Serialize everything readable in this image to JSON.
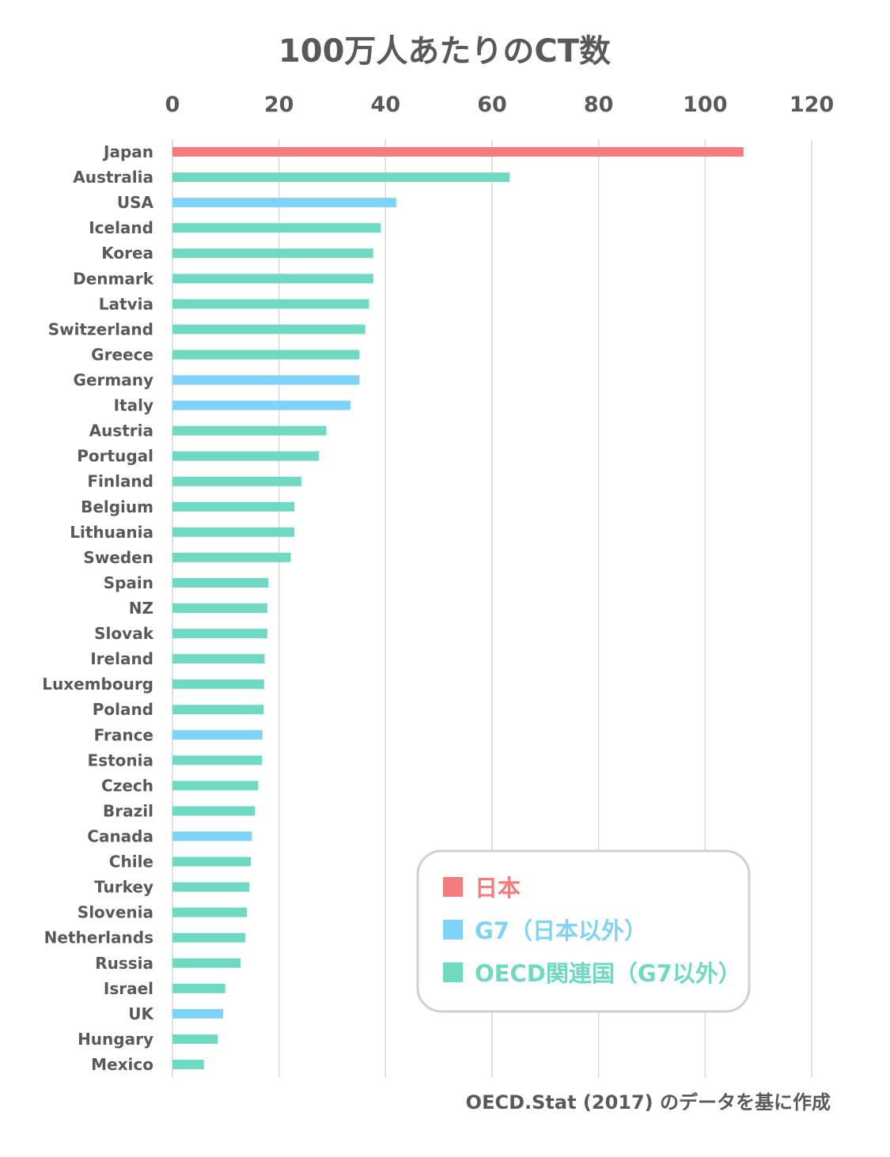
{
  "colors": {
    "japan": "#f47c7c",
    "g7": "#7fd3f7",
    "oecd": "#6fd9c2",
    "text": "#595959",
    "grid": "#d9d9d9"
  },
  "chart_data": {
    "type": "bar",
    "orientation": "horizontal",
    "title": "100万人あたりのCT数",
    "xlim": [
      0,
      120
    ],
    "xticks": [
      "0",
      "20",
      "40",
      "60",
      "80",
      "100",
      "120"
    ],
    "grid": true,
    "legend_position": "bottom-right",
    "legend": [
      {
        "group": "japan",
        "label": "日本"
      },
      {
        "group": "g7",
        "label": "G7（日本以外）"
      },
      {
        "group": "oecd",
        "label": "OECD関連国（G7以外）"
      }
    ],
    "categories": [
      "Japan",
      "Australia",
      "USA",
      "Iceland",
      "Korea",
      "Denmark",
      "Latvia",
      "Switzerland",
      "Greece",
      "Germany",
      "Italy",
      "Austria",
      "Portugal",
      "Finland",
      "Belgium",
      "Lithuania",
      "Sweden",
      "Spain",
      "NZ",
      "Slovak",
      "Ireland",
      "Luxembourg",
      "Poland",
      "France",
      "Estonia",
      "Czech",
      "Brazil",
      "Canada",
      "Chile",
      "Turkey",
      "Slovenia",
      "Netherlands",
      "Russia",
      "Israel",
      "UK",
      "Hungary",
      "Mexico"
    ],
    "values": [
      107.2,
      63.3,
      42.0,
      39.1,
      37.7,
      37.7,
      36.9,
      36.2,
      35.1,
      35.1,
      33.4,
      28.9,
      27.5,
      24.2,
      22.9,
      22.9,
      22.2,
      18.0,
      17.8,
      17.8,
      17.3,
      17.2,
      17.1,
      16.9,
      16.8,
      16.1,
      15.5,
      14.9,
      14.7,
      14.4,
      14.0,
      13.7,
      12.8,
      9.9,
      9.5,
      8.5,
      5.9
    ],
    "groups": [
      "japan",
      "oecd",
      "g7",
      "oecd",
      "oecd",
      "oecd",
      "oecd",
      "oecd",
      "oecd",
      "g7",
      "g7",
      "oecd",
      "oecd",
      "oecd",
      "oecd",
      "oecd",
      "oecd",
      "oecd",
      "oecd",
      "oecd",
      "oecd",
      "oecd",
      "oecd",
      "g7",
      "oecd",
      "oecd",
      "oecd",
      "g7",
      "oecd",
      "oecd",
      "oecd",
      "oecd",
      "oecd",
      "oecd",
      "g7",
      "oecd",
      "oecd"
    ],
    "source": "OECD.Stat (2017) のデータを基に作成"
  }
}
